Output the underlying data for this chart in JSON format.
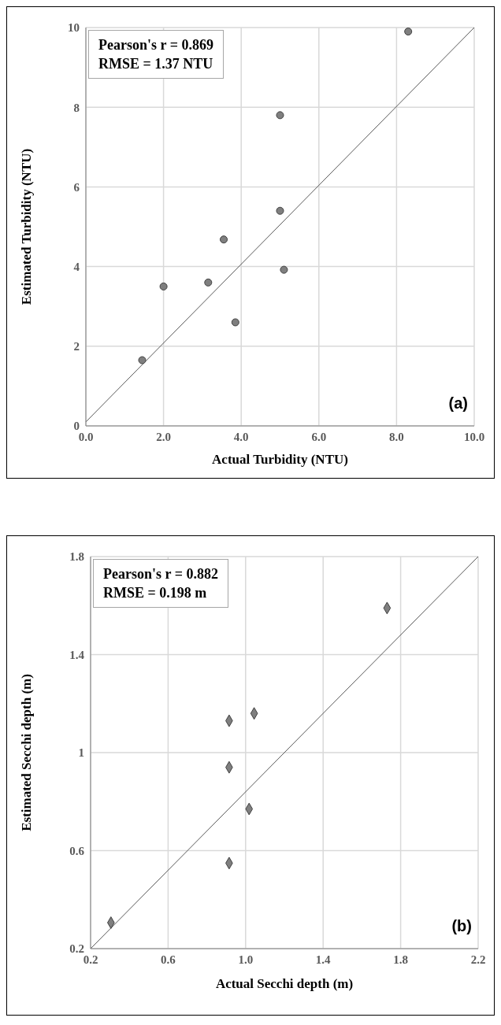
{
  "chart_data": [
    {
      "type": "scatter",
      "xlabel": "Actual Turbidity (NTU)",
      "ylabel": "Estimated Turbidity (NTU)",
      "annotations": [
        "Pearson's r = 0.869",
        "RMSE = 1.37 NTU",
        "(a)"
      ],
      "marker": "circle",
      "grid": true,
      "xlim": [
        0,
        10
      ],
      "ylim": [
        0,
        10
      ],
      "xticks": [
        {
          "value": 0,
          "label": "0.0"
        },
        {
          "value": 2,
          "label": "2.0"
        },
        {
          "value": 4,
          "label": "4.0"
        },
        {
          "value": 6,
          "label": "6.0"
        },
        {
          "value": 8,
          "label": "8.0"
        },
        {
          "value": 10,
          "label": "10.0"
        }
      ],
      "yticks": [
        0,
        2,
        4,
        6,
        8,
        10
      ],
      "series": [
        {
          "color": "#7f7f7f",
          "x": [
            1.45,
            2.0,
            3.15,
            3.55,
            3.85,
            5.0,
            5.0,
            5.1,
            8.3
          ],
          "values": [
            1.65,
            3.5,
            3.6,
            4.68,
            2.6,
            7.8,
            5.4,
            3.92,
            9.9
          ]
        },
        {
          "type": "line",
          "marker": "none",
          "color": "#595959",
          "x": [
            0,
            10
          ],
          "values": [
            0.1,
            10
          ]
        }
      ]
    },
    {
      "type": "scatter",
      "xlabel": "Actual Secchi depth (m)",
      "ylabel": "Estimated Secchi depth (m)",
      "annotations": [
        "Pearson's r = 0.882",
        "RMSE = 0.198 m",
        "(b)"
      ],
      "marker": "diamond",
      "grid": true,
      "xlim": [
        0.2,
        2.2
      ],
      "ylim": [
        0.2,
        1.8
      ],
      "xticks": [
        0.2,
        0.6,
        {
          "value": 1,
          "label": "1.0"
        },
        1.4,
        1.8,
        2.2
      ],
      "yticks": [
        0.2,
        0.6,
        1,
        1.4,
        1.8
      ],
      "series": [
        {
          "color": "#7f7f7f",
          "x": [
            0.305,
            0.915,
            0.915,
            0.915,
            1.044,
            1.018,
            1.73
          ],
          "values": [
            0.306,
            0.549,
            0.94,
            1.13,
            1.16,
            0.77,
            1.59
          ]
        },
        {
          "type": "line",
          "marker": "none",
          "color": "#595959",
          "x": [
            0.2,
            2.2
          ],
          "values": [
            0.2,
            1.8
          ]
        }
      ]
    }
  ]
}
